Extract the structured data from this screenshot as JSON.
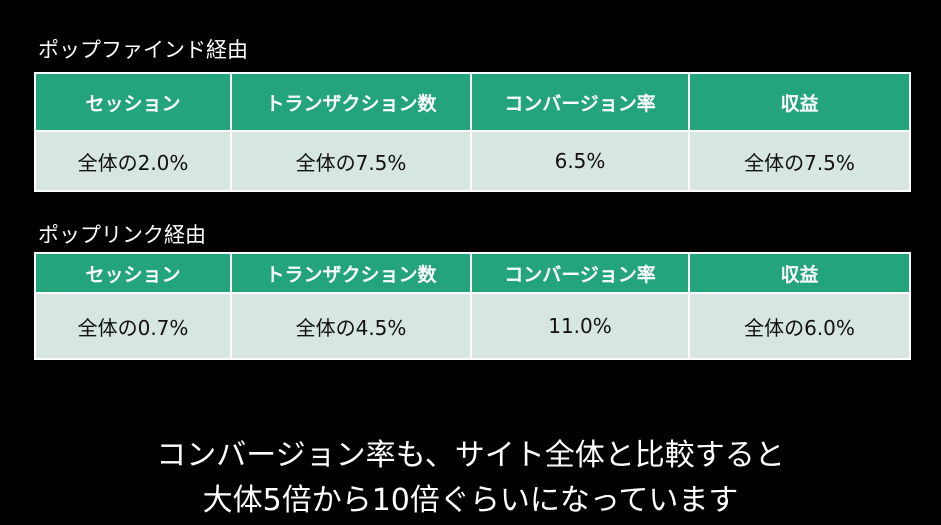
{
  "sections": [
    {
      "title": "ポップファインド経由",
      "headers": [
        "セッション",
        "トランザクション数",
        "コンバージョン率",
        "収益"
      ],
      "values": [
        "全体の2.0%",
        "全体の7.5%",
        "6.5%",
        "全体の7.5%"
      ]
    },
    {
      "title": "ポップリンク経由",
      "headers": [
        "セッション",
        "トランザクション数",
        "コンバージョン率",
        "収益"
      ],
      "values": [
        "全体の0.7%",
        "全体の4.5%",
        "11.0%",
        "全体の6.0%"
      ]
    }
  ],
  "caption": {
    "line1": "コンバージョン率も、サイト全体と比較すると",
    "line2": "大体5倍から10倍ぐらいになっています"
  },
  "colors": {
    "background": "#000000",
    "header_fill": "#23a47c",
    "cell_fill": "#d8e6e0",
    "border": "#ffffff"
  }
}
